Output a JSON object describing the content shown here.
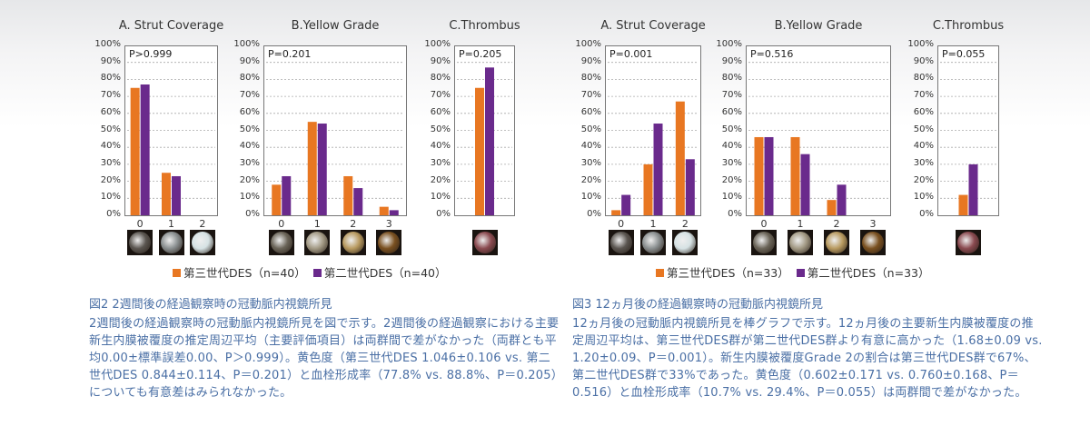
{
  "colors": {
    "series1": "#e87722",
    "series2": "#6a2a8c",
    "caption": "#4a6fa5"
  },
  "chart_data": [
    {
      "type": "bar",
      "title": "A. Strut Coverage",
      "annotation": "P>0.999",
      "categories": [
        "0",
        "1",
        "2"
      ],
      "ylim": [
        0,
        100
      ],
      "yticks": [
        "0%",
        "10%",
        "20%",
        "30%",
        "40%",
        "50%",
        "60%",
        "70%",
        "80%",
        "90%",
        "100%"
      ],
      "grid": true,
      "series": [
        {
          "name": "第三世代DES（n=40）",
          "values": [
            75,
            25,
            0
          ]
        },
        {
          "name": "第二世代DES（n=40）",
          "values": [
            77,
            23,
            0
          ]
        }
      ]
    },
    {
      "type": "bar",
      "title": "B.Yellow Grade",
      "annotation": "P=0.201",
      "categories": [
        "0",
        "1",
        "2",
        "3"
      ],
      "ylim": [
        0,
        100
      ],
      "yticks": [
        "0%",
        "10%",
        "20%",
        "30%",
        "40%",
        "50%",
        "60%",
        "70%",
        "80%",
        "90%",
        "100%"
      ],
      "grid": true,
      "series": [
        {
          "name": "第三世代DES（n=40）",
          "values": [
            18,
            55,
            23,
            5
          ]
        },
        {
          "name": "第二世代DES（n=40）",
          "values": [
            23,
            54,
            16,
            3
          ]
        }
      ]
    },
    {
      "type": "bar",
      "title": "C.Thrombus",
      "annotation": "P=0.205",
      "categories": [
        ""
      ],
      "ylim": [
        0,
        100
      ],
      "yticks": [
        "0%",
        "10%",
        "20%",
        "30%",
        "40%",
        "50%",
        "60%",
        "70%",
        "80%",
        "90%",
        "100%"
      ],
      "grid": true,
      "series": [
        {
          "name": "第三世代DES（n=40）",
          "values": [
            75
          ]
        },
        {
          "name": "第二世代DES（n=40）",
          "values": [
            87
          ]
        }
      ]
    },
    {
      "type": "bar",
      "title": "A. Strut Coverage",
      "annotation": "P=0.001",
      "categories": [
        "0",
        "1",
        "2"
      ],
      "ylim": [
        0,
        100
      ],
      "yticks": [
        "0%",
        "10%",
        "20%",
        "30%",
        "40%",
        "50%",
        "60%",
        "70%",
        "80%",
        "90%",
        "100%"
      ],
      "grid": true,
      "series": [
        {
          "name": "第三世代DES（n=33）",
          "values": [
            3,
            30,
            67
          ]
        },
        {
          "name": "第二世代DES（n=33）",
          "values": [
            12,
            54,
            33
          ]
        }
      ]
    },
    {
      "type": "bar",
      "title": "B.Yellow Grade",
      "annotation": "P=0.516",
      "categories": [
        "0",
        "1",
        "2",
        "3"
      ],
      "ylim": [
        0,
        100
      ],
      "yticks": [
        "0%",
        "10%",
        "20%",
        "30%",
        "40%",
        "50%",
        "60%",
        "70%",
        "80%",
        "90%",
        "100%"
      ],
      "grid": true,
      "series": [
        {
          "name": "第三世代DES（n=33）",
          "values": [
            46,
            46,
            9,
            0
          ]
        },
        {
          "name": "第二世代DES（n=33）",
          "values": [
            46,
            36,
            18,
            0
          ]
        }
      ]
    },
    {
      "type": "bar",
      "title": "C.Thrombus",
      "annotation": "P=0.055",
      "categories": [
        ""
      ],
      "ylim": [
        0,
        100
      ],
      "yticks": [
        "0%",
        "10%",
        "20%",
        "30%",
        "40%",
        "50%",
        "60%",
        "70%",
        "80%",
        "90%",
        "100%"
      ],
      "grid": true,
      "series": [
        {
          "name": "第三世代DES（n=33）",
          "values": [
            12
          ]
        },
        {
          "name": "第二世代DES（n=33）",
          "values": [
            30
          ]
        }
      ]
    }
  ],
  "legends": [
    {
      "s1": "第三世代DES（n=40）",
      "s2": "第二世代DES（n=40）"
    },
    {
      "s1": "第三世代DES（n=33）",
      "s2": "第二世代DES（n=33）"
    }
  ],
  "captions": [
    {
      "title": "図2 2週間後の経過観察時の冠動脈内視鏡所見",
      "body": "2週間後の経過観察時の冠動脈内視鏡所見を図で示す。2週間後の経過観察における主要新生内膜被覆度の推定周辺平均（主要評価項目）は両群間で差がなかった（両群とも平均0.00±標準誤差0.00、P＞0.999）。黄色度（第三世代DES 1.046±0.106 vs. 第二世代DES 0.844±0.114、P＝0.201）と血栓形成率（77.8% vs. 88.8%、P＝0.205）についても有意差はみられなかった。"
    },
    {
      "title": "図3 12ヵ月後の経過観察時の冠動脈内視鏡所見",
      "body": "12ヵ月後の冠動脈内視鏡所見を棒グラフで示す。12ヵ月後の主要新生内膜被覆度の推定周辺平均は、第三世代DES群が第二世代DES群より有意に高かった（1.68±0.09 vs. 1.20±0.09、P＝0.001）。新生内膜被覆度Grade 2の割合は第三世代DES群で67%、第二世代DES群で33%であった。黄色度（0.602±0.171 vs. 0.760±0.168、P＝0.516）と血栓形成率（10.7% vs. 29.4%、P＝0.055）は両群間で差がなかった。"
    }
  ]
}
